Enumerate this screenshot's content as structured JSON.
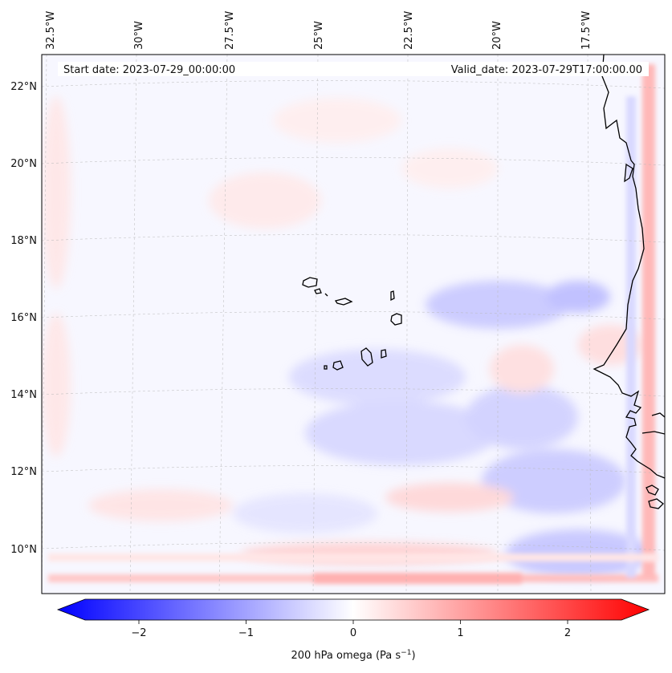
{
  "header": {
    "start_label": "Start date: 2023-07-29_00:00:00",
    "valid_label": "Valid_date: 2023-07-29T17:00:00.00"
  },
  "axes": {
    "lon_ticks": [
      "32.5°W",
      "30°W",
      "27.5°W",
      "25°W",
      "22.5°W",
      "20°W",
      "17.5°W"
    ],
    "lat_ticks": [
      "22°N",
      "20°N",
      "18°N",
      "16°N",
      "14°N",
      "12°N",
      "10°N"
    ]
  },
  "colorbar": {
    "ticks": [
      "−2",
      "−1",
      "0",
      "1",
      "2"
    ],
    "tick_values": [
      -2,
      -1,
      0,
      1,
      2
    ],
    "min": -2.5,
    "max": 2.5,
    "label_text": "200 hPa omega (Pa s",
    "label_exp": "−1",
    "label_close": ")",
    "neg_color": "#0000ff",
    "zero_color": "#ffffff",
    "pos_color": "#ff0000"
  },
  "colors": {
    "coastline": "#000000",
    "grid": "#b8b8b8"
  }
}
